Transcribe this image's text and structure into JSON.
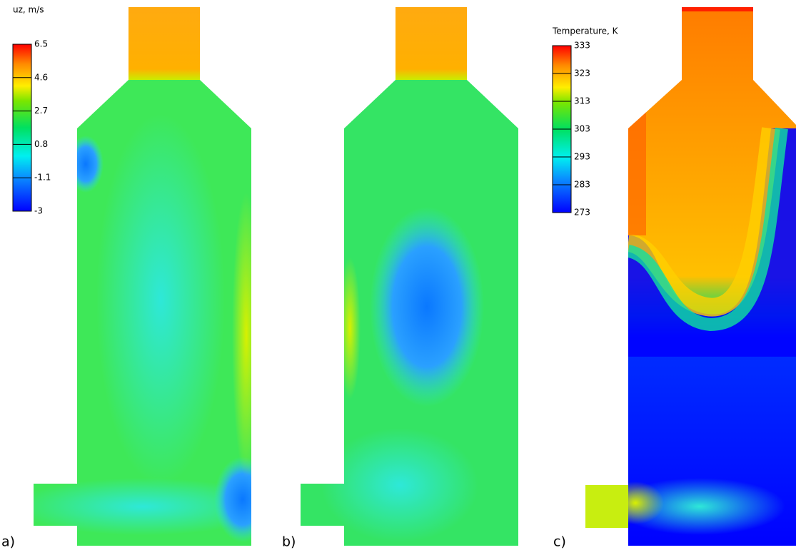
{
  "colorbars": [
    {
      "title": "uz, m/s",
      "ticks": [
        -3,
        -1.1,
        0.8,
        2.7,
        4.6,
        6.5
      ]
    },
    {
      "title": "Temperature, K",
      "ticks": [
        273,
        283,
        293,
        303,
        313,
        323,
        333
      ]
    }
  ],
  "panels": [
    {
      "label": "a)"
    },
    {
      "label": "b)"
    },
    {
      "label": "c)"
    }
  ]
}
